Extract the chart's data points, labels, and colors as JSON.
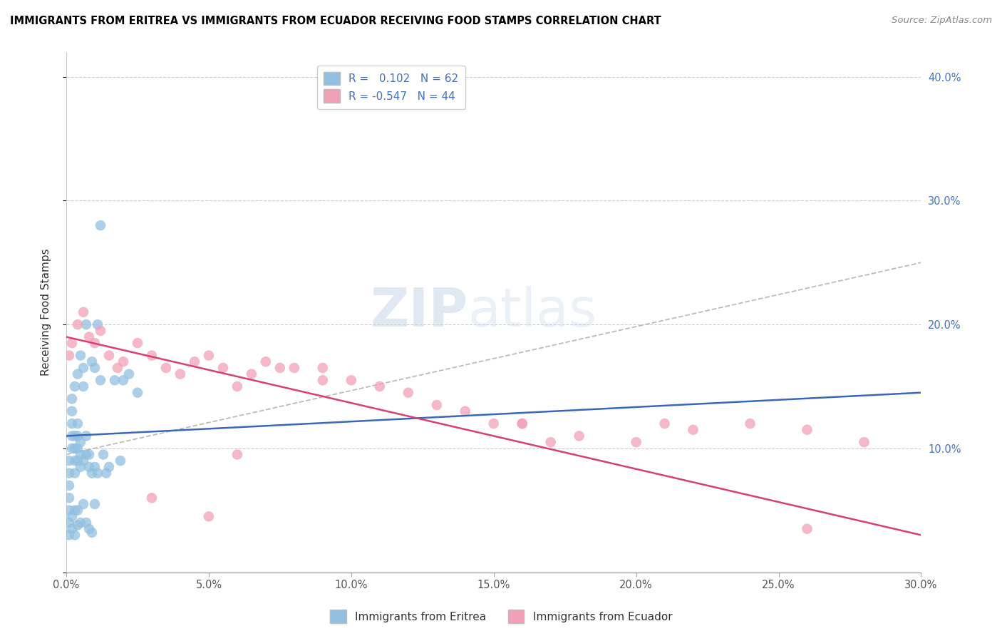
{
  "title": "IMMIGRANTS FROM ERITREA VS IMMIGRANTS FROM ECUADOR RECEIVING FOOD STAMPS CORRELATION CHART",
  "source": "Source: ZipAtlas.com",
  "ylabel": "Receiving Food Stamps",
  "xlim": [
    0.0,
    0.3
  ],
  "ylim": [
    0.0,
    0.42
  ],
  "xticks": [
    0.0,
    0.05,
    0.1,
    0.15,
    0.2,
    0.25,
    0.3
  ],
  "yticks": [
    0.0,
    0.1,
    0.2,
    0.3,
    0.4
  ],
  "eritrea_color": "#92c0e0",
  "ecuador_color": "#f2a0b8",
  "eritrea_line_color": "#3a68b8",
  "ecuador_line_color": "#d84070",
  "dash_line_color": "#bbbbbb",
  "R_eritrea": 0.102,
  "N_eritrea": 62,
  "R_ecuador": -0.547,
  "N_ecuador": 44,
  "legend_label_eritrea": "Immigrants from Eritrea",
  "legend_label_ecuador": "Immigrants from Ecuador",
  "watermark": "ZIPatlas",
  "eritrea_x": [
    0.001,
    0.001,
    0.001,
    0.001,
    0.001,
    0.002,
    0.002,
    0.002,
    0.002,
    0.002,
    0.003,
    0.003,
    0.003,
    0.003,
    0.003,
    0.004,
    0.004,
    0.004,
    0.004,
    0.004,
    0.005,
    0.005,
    0.005,
    0.005,
    0.006,
    0.006,
    0.006,
    0.007,
    0.007,
    0.007,
    0.008,
    0.008,
    0.009,
    0.009,
    0.01,
    0.01,
    0.011,
    0.011,
    0.012,
    0.013,
    0.014,
    0.015,
    0.017,
    0.019,
    0.02,
    0.022,
    0.025,
    0.001,
    0.001,
    0.002,
    0.002,
    0.003,
    0.003,
    0.004,
    0.004,
    0.005,
    0.006,
    0.007,
    0.008,
    0.009,
    0.01,
    0.012
  ],
  "eritrea_y": [
    0.05,
    0.06,
    0.07,
    0.08,
    0.09,
    0.1,
    0.11,
    0.12,
    0.13,
    0.14,
    0.08,
    0.09,
    0.1,
    0.11,
    0.15,
    0.09,
    0.1,
    0.11,
    0.12,
    0.16,
    0.085,
    0.095,
    0.105,
    0.175,
    0.09,
    0.15,
    0.165,
    0.095,
    0.11,
    0.2,
    0.085,
    0.095,
    0.08,
    0.17,
    0.085,
    0.165,
    0.08,
    0.2,
    0.155,
    0.095,
    0.08,
    0.085,
    0.155,
    0.09,
    0.155,
    0.16,
    0.145,
    0.03,
    0.04,
    0.035,
    0.045,
    0.03,
    0.05,
    0.038,
    0.05,
    0.04,
    0.055,
    0.04,
    0.035,
    0.032,
    0.055,
    0.28
  ],
  "ecuador_x": [
    0.001,
    0.002,
    0.004,
    0.006,
    0.008,
    0.01,
    0.012,
    0.015,
    0.018,
    0.02,
    0.025,
    0.03,
    0.035,
    0.04,
    0.045,
    0.05,
    0.055,
    0.06,
    0.065,
    0.07,
    0.075,
    0.08,
    0.09,
    0.1,
    0.11,
    0.12,
    0.13,
    0.14,
    0.15,
    0.16,
    0.17,
    0.18,
    0.2,
    0.21,
    0.22,
    0.24,
    0.26,
    0.28,
    0.03,
    0.05,
    0.06,
    0.09,
    0.16,
    0.26
  ],
  "ecuador_y": [
    0.175,
    0.185,
    0.2,
    0.21,
    0.19,
    0.185,
    0.195,
    0.175,
    0.165,
    0.17,
    0.185,
    0.175,
    0.165,
    0.16,
    0.17,
    0.175,
    0.165,
    0.15,
    0.16,
    0.17,
    0.165,
    0.165,
    0.165,
    0.155,
    0.15,
    0.145,
    0.135,
    0.13,
    0.12,
    0.12,
    0.105,
    0.11,
    0.105,
    0.12,
    0.115,
    0.12,
    0.115,
    0.105,
    0.06,
    0.045,
    0.095,
    0.155,
    0.12,
    0.035
  ]
}
